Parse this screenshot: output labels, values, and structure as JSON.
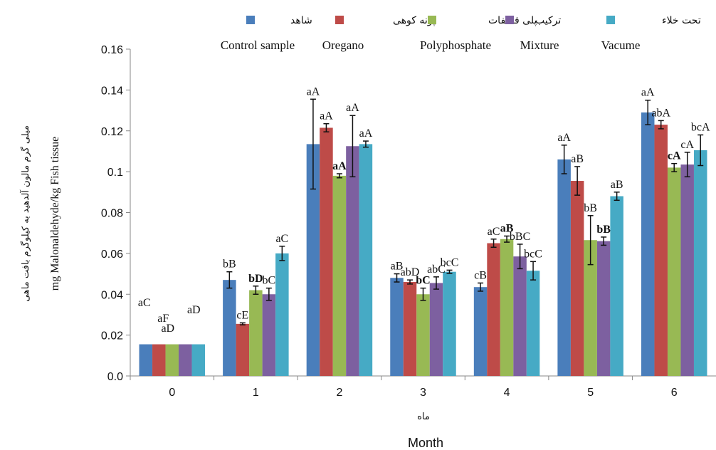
{
  "chart_data": {
    "type": "bar",
    "categories": [
      "0",
      "1",
      "2",
      "3",
      "4",
      "5",
      "6"
    ],
    "xlabel_fa": "ماه",
    "xlabel": "Month",
    "ylabel": "mg Malonaldehyde/kg Fish tissue",
    "ylabel_fa": "میلی گرم مالون آلدهید به کیلوگرم بافت ماهی",
    "ylim": [
      0,
      0.16
    ],
    "yticks": [
      "0.0",
      "0.02",
      "0.04",
      "0.06",
      "0.08",
      "0.1",
      "0.12",
      "0.14",
      "0.16"
    ],
    "ytick_values": [
      0,
      0.02,
      0.04,
      0.06,
      0.08,
      0.1,
      0.12,
      0.14,
      0.16
    ],
    "legend_position": "top",
    "series": [
      {
        "name": "Control sample",
        "name_fa": "شاهد",
        "color": "#4A7EBB",
        "values": [
          0.0155,
          0.047,
          0.1135,
          0.048,
          0.0435,
          0.106,
          0.129
        ],
        "errors": [
          0,
          0.004,
          0.022,
          0.002,
          0.002,
          0.007,
          0.006
        ],
        "labels": [
          "aC",
          "bB",
          "aA",
          "aB",
          "cB",
          "aA",
          "aA"
        ]
      },
      {
        "name": "Oregano",
        "name_fa": "پونه کوهی",
        "color": "#BE4B48",
        "values": [
          0.0155,
          0.0255,
          0.1215,
          0.046,
          0.065,
          0.0955,
          0.123
        ],
        "errors": [
          0,
          0.0005,
          0.002,
          0.001,
          0.002,
          0.007,
          0.002
        ],
        "labels": [
          "aF",
          "cE",
          "aA",
          "abD",
          "aC",
          "aB",
          "abA"
        ]
      },
      {
        "name": "Polyphosphate",
        "name_fa": "پلی فسفات",
        "color": "#98B954",
        "values": [
          0.0155,
          0.042,
          0.098,
          0.04,
          0.067,
          0.0665,
          0.102
        ],
        "errors": [
          0,
          0.002,
          0.001,
          0.003,
          0.0015,
          0.012,
          0.002
        ],
        "labels": [
          "aD",
          "bD",
          "aA",
          "bC",
          "aB",
          "bB",
          "cA"
        ]
      },
      {
        "name": "Mixture",
        "name_fa": "ترکیب",
        "color": "#7D60A0",
        "values": [
          0.0155,
          0.04,
          0.1125,
          0.0455,
          0.0585,
          0.066,
          0.1035
        ],
        "errors": [
          0,
          0.003,
          0.015,
          0.003,
          0.006,
          0.002,
          0.006
        ],
        "labels": [
          "aD",
          "bC",
          "aA",
          "abC",
          "bBC",
          "bB",
          "cA"
        ]
      },
      {
        "name": "Vacume",
        "name_fa": "تحت خلاء",
        "color": "#46AAC5",
        "values": [
          0.0155,
          0.06,
          0.1135,
          0.051,
          0.0515,
          0.088,
          0.1105
        ],
        "errors": [
          0,
          0.0035,
          0.0015,
          0.0008,
          0.0045,
          0.002,
          0.0075
        ],
        "labels": [
          "",
          "aC",
          "aA",
          "bcC",
          "bcC",
          "aB",
          "bcA"
        ]
      }
    ]
  }
}
